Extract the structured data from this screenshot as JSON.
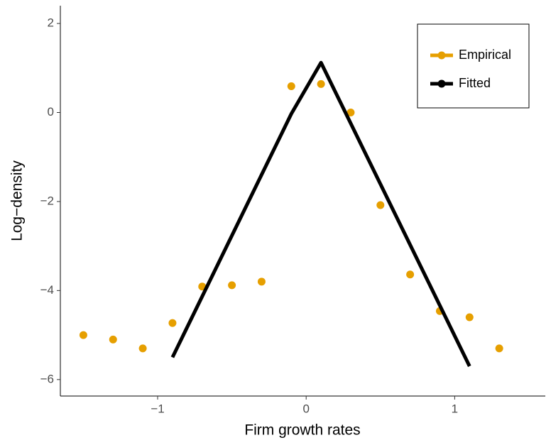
{
  "chart_data": {
    "type": "line",
    "x_label": "Firm growth rates",
    "y_label": "Log−density",
    "xlim": [
      -1.655,
      1.61
    ],
    "ylim": [
      -6.37,
      2.4
    ],
    "xticks": [
      {
        "value": -1,
        "label": "−1"
      },
      0,
      1
    ],
    "yticks": [
      {
        "value": -6,
        "label": "−6"
      },
      {
        "value": -4,
        "label": "−4"
      },
      {
        "value": -2,
        "label": "−2"
      },
      0,
      2
    ],
    "legend_position": "top-right",
    "series": [
      {
        "name": "Empirical",
        "color": "#E69F00",
        "style": "points",
        "x": [
          -1.5,
          -1.3,
          -1.1,
          -0.9,
          -0.7,
          -0.5,
          -0.3,
          -0.1,
          0.1,
          0.3,
          0.5,
          0.7,
          0.9,
          1.1,
          1.3
        ],
        "values": [
          -5.0,
          -5.1,
          -5.3,
          -4.73,
          -3.91,
          -3.88,
          -3.8,
          0.59,
          0.64,
          0.0,
          -2.08,
          -3.64,
          -4.46,
          -4.6,
          -5.3
        ]
      },
      {
        "name": "Fitted",
        "color": "#000000",
        "style": "line",
        "x": [
          -0.9,
          -0.1,
          0.1,
          1.1
        ],
        "values": [
          -5.5,
          -0.03,
          1.12,
          -5.7
        ]
      }
    ]
  }
}
